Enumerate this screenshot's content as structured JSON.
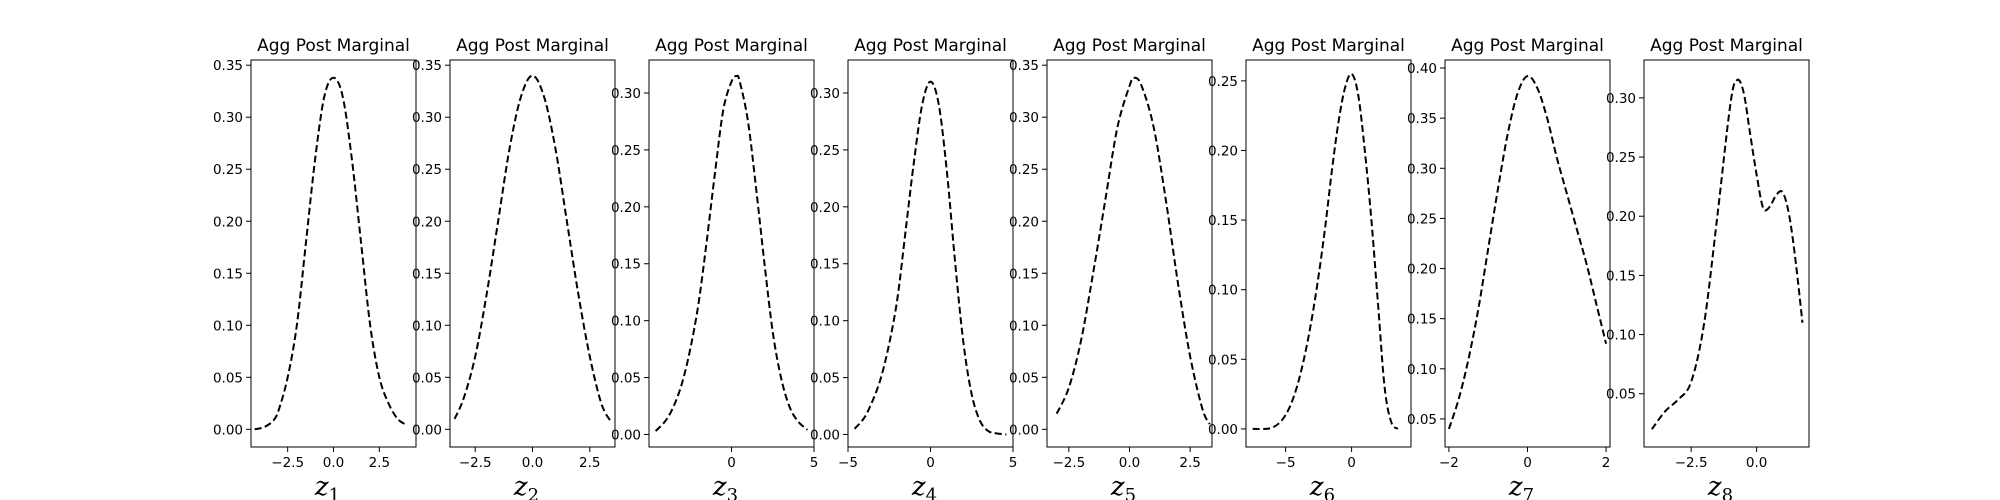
{
  "chart_data": [
    {
      "type": "line",
      "title": "Agg Post Marginal",
      "xlabel_base": "z",
      "xlabel_sub": "1",
      "xlim": [
        -4.5,
        4.5
      ],
      "ylim": [
        -0.017,
        0.355
      ],
      "xticks": [
        {
          "v": -2.5,
          "label": "−2.5"
        },
        {
          "v": 0,
          "label": "0.0"
        },
        {
          "v": 2.5,
          "label": "2.5"
        }
      ],
      "yticks": [
        {
          "v": 0.0,
          "label": "0.00"
        },
        {
          "v": 0.05,
          "label": "0.05"
        },
        {
          "v": 0.1,
          "label": "0.10"
        },
        {
          "v": 0.15,
          "label": "0.15"
        },
        {
          "v": 0.2,
          "label": "0.20"
        },
        {
          "v": 0.25,
          "label": "0.25"
        },
        {
          "v": 0.3,
          "label": "0.30"
        },
        {
          "v": 0.35,
          "label": "0.35"
        }
      ],
      "series": [
        {
          "line_style": "dashed",
          "color": "#000000",
          "x": [
            -4.3,
            -3.8,
            -3.3,
            -3.0,
            -2.5,
            -2.0,
            -1.5,
            -1.0,
            -0.5,
            0.0,
            0.5,
            1.0,
            1.5,
            2.0,
            2.5,
            3.0,
            3.5,
            4.0
          ],
          "y": [
            0.0,
            0.002,
            0.008,
            0.018,
            0.05,
            0.1,
            0.18,
            0.26,
            0.32,
            0.338,
            0.32,
            0.26,
            0.18,
            0.1,
            0.05,
            0.025,
            0.01,
            0.004
          ]
        }
      ]
    },
    {
      "type": "line",
      "title": "Agg Post Marginal",
      "xlabel_base": "z",
      "xlabel_sub": "2",
      "xlim": [
        -3.6,
        3.6
      ],
      "ylim": [
        -0.017,
        0.355
      ],
      "xticks": [
        {
          "v": -2.5,
          "label": "−2.5"
        },
        {
          "v": 0,
          "label": "0.0"
        },
        {
          "v": 2.5,
          "label": "2.5"
        }
      ],
      "yticks": [
        {
          "v": 0.0,
          "label": "0.00"
        },
        {
          "v": 0.05,
          "label": "0.05"
        },
        {
          "v": 0.1,
          "label": "0.10"
        },
        {
          "v": 0.15,
          "label": "0.15"
        },
        {
          "v": 0.2,
          "label": "0.20"
        },
        {
          "v": 0.25,
          "label": "0.25"
        },
        {
          "v": 0.3,
          "label": "0.30"
        },
        {
          "v": 0.35,
          "label": "0.35"
        }
      ],
      "series": [
        {
          "line_style": "dashed",
          "color": "#000000",
          "x": [
            -3.4,
            -3.0,
            -2.5,
            -2.0,
            -1.5,
            -1.0,
            -0.5,
            0.0,
            0.5,
            1.0,
            1.5,
            2.0,
            2.5,
            3.0,
            3.4
          ],
          "y": [
            0.01,
            0.03,
            0.07,
            0.13,
            0.2,
            0.27,
            0.32,
            0.34,
            0.32,
            0.27,
            0.2,
            0.13,
            0.07,
            0.025,
            0.008
          ]
        }
      ]
    },
    {
      "type": "line",
      "title": "Agg Post Marginal",
      "xlabel_base": "z",
      "xlabel_sub": "3",
      "xlim": [
        -5.0,
        5.0
      ],
      "ylim": [
        -0.011,
        0.329
      ],
      "xticks": [
        {
          "v": 0,
          "label": "0"
        },
        {
          "v": 5,
          "label": "5"
        }
      ],
      "yticks": [
        {
          "v": 0.0,
          "label": "0.00"
        },
        {
          "v": 0.05,
          "label": "0.05"
        },
        {
          "v": 0.1,
          "label": "0.10"
        },
        {
          "v": 0.15,
          "label": "0.15"
        },
        {
          "v": 0.2,
          "label": "0.20"
        },
        {
          "v": 0.25,
          "label": "0.25"
        },
        {
          "v": 0.3,
          "label": "0.30"
        }
      ],
      "series": [
        {
          "line_style": "dashed",
          "color": "#000000",
          "x": [
            -4.6,
            -4.0,
            -3.5,
            -3.0,
            -2.5,
            -2.0,
            -1.5,
            -1.0,
            -0.5,
            0.0,
            0.3,
            0.5,
            1.0,
            1.5,
            2.0,
            2.5,
            3.0,
            3.5,
            4.0,
            4.6
          ],
          "y": [
            0.003,
            0.012,
            0.025,
            0.045,
            0.075,
            0.115,
            0.17,
            0.23,
            0.285,
            0.31,
            0.315,
            0.31,
            0.275,
            0.215,
            0.15,
            0.09,
            0.05,
            0.025,
            0.012,
            0.004
          ]
        }
      ]
    },
    {
      "type": "line",
      "title": "Agg Post Marginal",
      "xlabel_base": "z",
      "xlabel_sub": "4",
      "xlim": [
        -5.0,
        5.0
      ],
      "ylim": [
        -0.011,
        0.329
      ],
      "xticks": [
        {
          "v": -5,
          "label": "−5"
        },
        {
          "v": 0,
          "label": "0"
        },
        {
          "v": 5,
          "label": "5"
        }
      ],
      "yticks": [
        {
          "v": 0.0,
          "label": "0.00"
        },
        {
          "v": 0.05,
          "label": "0.05"
        },
        {
          "v": 0.1,
          "label": "0.10"
        },
        {
          "v": 0.15,
          "label": "0.15"
        },
        {
          "v": 0.2,
          "label": "0.20"
        },
        {
          "v": 0.25,
          "label": "0.25"
        },
        {
          "v": 0.3,
          "label": "0.30"
        }
      ],
      "series": [
        {
          "line_style": "dashed",
          "color": "#000000",
          "x": [
            -4.6,
            -4.0,
            -3.5,
            -3.0,
            -2.5,
            -2.0,
            -1.5,
            -1.0,
            -0.5,
            0.0,
            0.5,
            1.0,
            1.5,
            2.0,
            2.5,
            3.0,
            3.5,
            4.0,
            4.6
          ],
          "y": [
            0.005,
            0.015,
            0.03,
            0.05,
            0.08,
            0.12,
            0.18,
            0.24,
            0.29,
            0.31,
            0.29,
            0.23,
            0.15,
            0.08,
            0.035,
            0.012,
            0.003,
            0.001,
            0.0
          ]
        }
      ]
    },
    {
      "type": "line",
      "title": "Agg Post Marginal",
      "xlabel_base": "z",
      "xlabel_sub": "5",
      "xlim": [
        -3.4,
        3.4
      ],
      "ylim": [
        -0.017,
        0.355
      ],
      "xticks": [
        {
          "v": -2.5,
          "label": "−2.5"
        },
        {
          "v": 0,
          "label": "0.0"
        },
        {
          "v": 2.5,
          "label": "2.5"
        }
      ],
      "yticks": [
        {
          "v": 0.0,
          "label": "0.00"
        },
        {
          "v": 0.05,
          "label": "0.05"
        },
        {
          "v": 0.1,
          "label": "0.10"
        },
        {
          "v": 0.15,
          "label": "0.15"
        },
        {
          "v": 0.2,
          "label": "0.20"
        },
        {
          "v": 0.25,
          "label": "0.25"
        },
        {
          "v": 0.3,
          "label": "0.30"
        },
        {
          "v": 0.35,
          "label": "0.35"
        }
      ],
      "series": [
        {
          "line_style": "dashed",
          "color": "#000000",
          "x": [
            -3.0,
            -2.5,
            -2.0,
            -1.5,
            -1.0,
            -0.5,
            0.0,
            0.2,
            0.5,
            1.0,
            1.5,
            2.0,
            2.5,
            3.0,
            3.3
          ],
          "y": [
            0.015,
            0.04,
            0.085,
            0.15,
            0.22,
            0.29,
            0.33,
            0.338,
            0.33,
            0.29,
            0.22,
            0.14,
            0.07,
            0.02,
            0.005
          ]
        }
      ]
    },
    {
      "type": "line",
      "title": "Agg Post Marginal",
      "xlabel_base": "z",
      "xlabel_sub": "6",
      "xlim": [
        -8.0,
        4.5
      ],
      "ylim": [
        -0.013,
        0.265
      ],
      "xticks": [
        {
          "v": -5,
          "label": "−5"
        },
        {
          "v": 0,
          "label": "0"
        }
      ],
      "yticks": [
        {
          "v": 0.0,
          "label": "0.00"
        },
        {
          "v": 0.05,
          "label": "0.05"
        },
        {
          "v": 0.1,
          "label": "0.10"
        },
        {
          "v": 0.15,
          "label": "0.15"
        },
        {
          "v": 0.2,
          "label": "0.20"
        },
        {
          "v": 0.25,
          "label": "0.25"
        }
      ],
      "series": [
        {
          "line_style": "dashed",
          "color": "#000000",
          "x": [
            -7.5,
            -6.5,
            -6.0,
            -5.5,
            -5.0,
            -4.5,
            -4.0,
            -3.5,
            -3.0,
            -2.5,
            -2.0,
            -1.5,
            -1.0,
            -0.5,
            0.0,
            0.5,
            1.0,
            1.5,
            2.0,
            2.5,
            3.0,
            3.5
          ],
          "y": [
            0.0,
            0.0,
            0.001,
            0.004,
            0.01,
            0.02,
            0.035,
            0.055,
            0.08,
            0.11,
            0.145,
            0.185,
            0.22,
            0.245,
            0.255,
            0.24,
            0.2,
            0.15,
            0.09,
            0.03,
            0.005,
            0.0
          ]
        }
      ]
    },
    {
      "type": "line",
      "title": "Agg Post Marginal",
      "xlabel_base": "z",
      "xlabel_sub": "7",
      "xlim": [
        -2.1,
        2.1
      ],
      "ylim": [
        0.022,
        0.408
      ],
      "xticks": [
        {
          "v": -2,
          "label": "−2"
        },
        {
          "v": 0,
          "label": "0"
        },
        {
          "v": 2,
          "label": "2"
        }
      ],
      "yticks": [
        {
          "v": 0.05,
          "label": "0.05"
        },
        {
          "v": 0.1,
          "label": "0.10"
        },
        {
          "v": 0.15,
          "label": "0.15"
        },
        {
          "v": 0.2,
          "label": "0.20"
        },
        {
          "v": 0.25,
          "label": "0.25"
        },
        {
          "v": 0.3,
          "label": "0.30"
        },
        {
          "v": 0.35,
          "label": "0.35"
        },
        {
          "v": 0.4,
          "label": "0.40"
        }
      ],
      "series": [
        {
          "line_style": "dashed",
          "color": "#000000",
          "x": [
            -2.0,
            -1.75,
            -1.5,
            -1.25,
            -1.0,
            -0.75,
            -0.5,
            -0.25,
            0.0,
            0.25,
            0.5,
            0.75,
            1.0,
            1.25,
            1.5,
            1.75,
            2.0
          ],
          "y": [
            0.04,
            0.07,
            0.11,
            0.16,
            0.22,
            0.28,
            0.335,
            0.375,
            0.392,
            0.38,
            0.35,
            0.31,
            0.275,
            0.24,
            0.205,
            0.165,
            0.125
          ]
        }
      ]
    },
    {
      "type": "line",
      "title": "Agg Post Marginal",
      "xlabel_base": "z",
      "xlabel_sub": "8",
      "xlim": [
        -4.3,
        2.0
      ],
      "ylim": [
        0.005,
        0.332
      ],
      "xticks": [
        {
          "v": -2.5,
          "label": "−2.5"
        },
        {
          "v": 0,
          "label": "0.0"
        }
      ],
      "yticks": [
        {
          "v": 0.05,
          "label": "0.05"
        },
        {
          "v": 0.1,
          "label": "0.10"
        },
        {
          "v": 0.15,
          "label": "0.15"
        },
        {
          "v": 0.2,
          "label": "0.20"
        },
        {
          "v": 0.25,
          "label": "0.25"
        },
        {
          "v": 0.3,
          "label": "0.30"
        }
      ],
      "series": [
        {
          "line_style": "dashed",
          "color": "#000000",
          "x": [
            -4.0,
            -3.5,
            -3.0,
            -2.5,
            -2.0,
            -1.5,
            -1.0,
            -0.75,
            -0.5,
            -0.25,
            0.0,
            0.25,
            0.5,
            0.75,
            1.0,
            1.25,
            1.5,
            1.75
          ],
          "y": [
            0.02,
            0.035,
            0.045,
            0.06,
            0.11,
            0.2,
            0.295,
            0.315,
            0.305,
            0.27,
            0.235,
            0.207,
            0.208,
            0.218,
            0.22,
            0.2,
            0.16,
            0.11
          ]
        }
      ]
    }
  ]
}
